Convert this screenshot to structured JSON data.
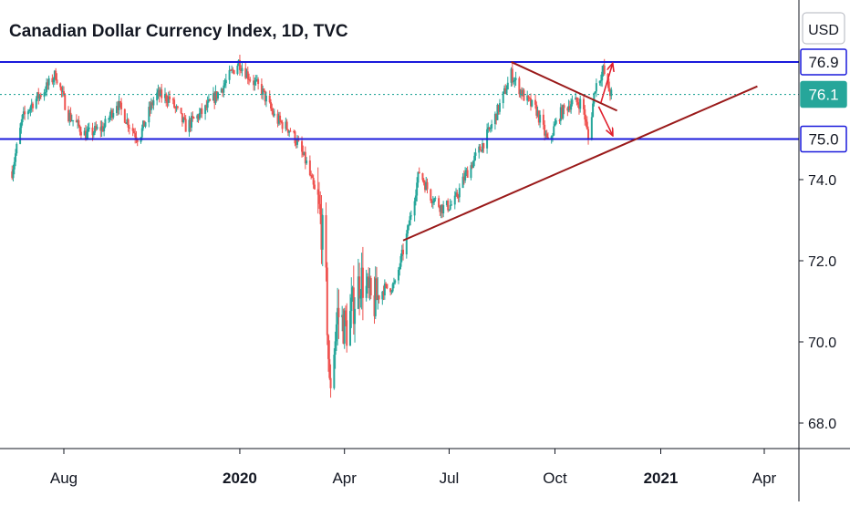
{
  "header": {
    "title": "Canadian Dollar Currency Index, 1D, TVC"
  },
  "chart_data": {
    "type": "candlestick",
    "currency_label": "USD",
    "y_range": [
      67.5,
      78.5
    ],
    "y_ticks": [
      68.0,
      70.0,
      72.0,
      74.0
    ],
    "x_ticks": [
      {
        "label": "Aug",
        "date": "2019-08-01",
        "bold": false
      },
      {
        "label": "2020",
        "date": "2020-01-01",
        "bold": true
      },
      {
        "label": "Apr",
        "date": "2020-04-01",
        "bold": false
      },
      {
        "label": "Jul",
        "date": "2020-07-01",
        "bold": false
      },
      {
        "label": "Oct",
        "date": "2020-10-01",
        "bold": false
      },
      {
        "label": "2021",
        "date": "2021-01-01",
        "bold": true
      },
      {
        "label": "Apr",
        "date": "2021-04-01",
        "bold": false
      }
    ],
    "price_lines": [
      {
        "name": "resistance",
        "value": 76.9,
        "label": "76.9",
        "color": "#1a1adb",
        "style": "solid"
      },
      {
        "name": "last-price",
        "value": 76.1,
        "label": "76.1",
        "color": "#26a69a",
        "style": "dotted"
      },
      {
        "name": "support",
        "value": 75.0,
        "label": "75.0",
        "color": "#1a1adb",
        "style": "solid"
      }
    ],
    "trendlines": [
      {
        "name": "descending-trendline",
        "from": [
          "2020-08-24",
          76.9
        ],
        "to": [
          "2020-11-24",
          75.7
        ]
      },
      {
        "name": "ascending-trendline",
        "from": [
          "2020-05-22",
          72.5
        ],
        "to": [
          "2021-03-26",
          76.3
        ]
      }
    ],
    "arrows": [
      {
        "name": "breakout-up-arrow",
        "from": [
          "2020-11-10",
          75.9
        ],
        "to": [
          "2020-11-20",
          76.85
        ]
      },
      {
        "name": "breakdown-arrow",
        "from": [
          "2020-11-08",
          75.8
        ],
        "to": [
          "2020-11-20",
          75.1
        ]
      }
    ],
    "price_anchors": [
      [
        "2019-06-17",
        74.2
      ],
      [
        "2019-06-26",
        75.5
      ],
      [
        "2019-07-05",
        75.9
      ],
      [
        "2019-07-15",
        76.2
      ],
      [
        "2019-07-25",
        76.6
      ],
      [
        "2019-08-05",
        75.6
      ],
      [
        "2019-08-20",
        75.1
      ],
      [
        "2019-09-05",
        75.3
      ],
      [
        "2019-09-16",
        75.9
      ],
      [
        "2019-09-26",
        75.4
      ],
      [
        "2019-10-05",
        75.0
      ],
      [
        "2019-10-20",
        76.1
      ],
      [
        "2019-11-01",
        76.0
      ],
      [
        "2019-11-15",
        75.3
      ],
      [
        "2019-12-01",
        75.7
      ],
      [
        "2019-12-15",
        76.2
      ],
      [
        "2019-12-31",
        76.9
      ],
      [
        "2020-01-10",
        76.5
      ],
      [
        "2020-01-20",
        76.2
      ],
      [
        "2020-02-01",
        75.5
      ],
      [
        "2020-02-15",
        75.2
      ],
      [
        "2020-02-28",
        74.4
      ],
      [
        "2020-03-09",
        73.4
      ],
      [
        "2020-03-15",
        72.2
      ],
      [
        "2020-03-19",
        68.8
      ],
      [
        "2020-03-26",
        70.7
      ],
      [
        "2020-04-03",
        70.3
      ],
      [
        "2020-04-15",
        71.6
      ],
      [
        "2020-04-25",
        70.9
      ],
      [
        "2020-05-05",
        71.3
      ],
      [
        "2020-05-15",
        71.4
      ],
      [
        "2020-05-25",
        72.6
      ],
      [
        "2020-06-05",
        74.2
      ],
      [
        "2020-06-15",
        73.6
      ],
      [
        "2020-06-25",
        73.3
      ],
      [
        "2020-07-05",
        73.4
      ],
      [
        "2020-07-15",
        74.1
      ],
      [
        "2020-07-25",
        74.6
      ],
      [
        "2020-08-05",
        75.2
      ],
      [
        "2020-08-15",
        75.9
      ],
      [
        "2020-08-24",
        76.6
      ],
      [
        "2020-09-05",
        76.0
      ],
      [
        "2020-09-15",
        75.7
      ],
      [
        "2020-09-25",
        74.9
      ],
      [
        "2020-10-05",
        75.6
      ],
      [
        "2020-10-15",
        75.9
      ],
      [
        "2020-10-25",
        75.9
      ],
      [
        "2020-10-30",
        75.0
      ],
      [
        "2020-11-05",
        76.3
      ],
      [
        "2020-11-12",
        76.7
      ],
      [
        "2020-11-17",
        76.2
      ],
      [
        "2020-11-19",
        76.1
      ]
    ]
  }
}
